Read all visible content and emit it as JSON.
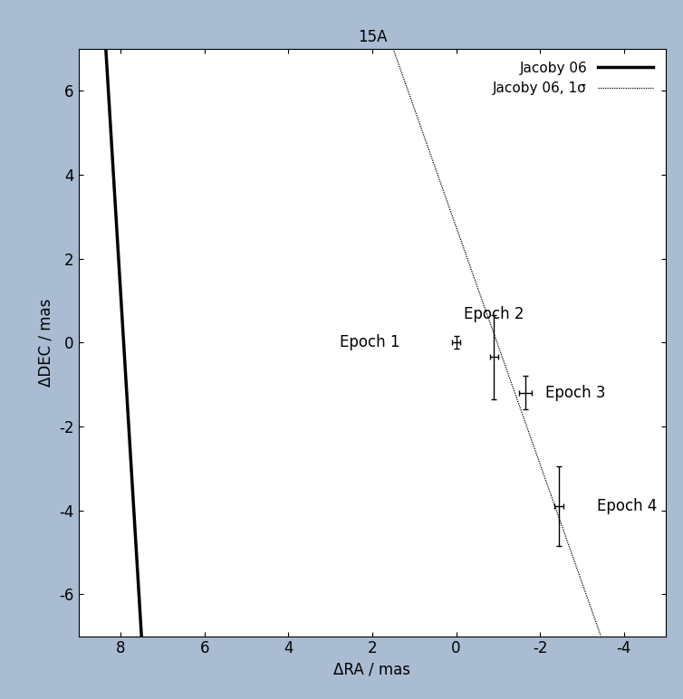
{
  "chart_data": {
    "type": "scatter",
    "title": "15A",
    "x_label": "ΔRA / mas",
    "y_label": "ΔDEC / mas",
    "xlim": [
      9,
      -5
    ],
    "ylim": [
      -7,
      7
    ],
    "xticks": [
      8,
      6,
      4,
      2,
      0,
      -2,
      -4
    ],
    "yticks": [
      -6,
      -4,
      -2,
      0,
      2,
      4,
      6
    ],
    "legend": "upper right",
    "series": [
      {
        "name": "Jacoby 06",
        "type": "line",
        "color": "#000000",
        "line_style": "solid",
        "x": [
          8.35,
          7.5
        ],
        "values": [
          7,
          -7
        ]
      },
      {
        "name": "Jacoby 06, 1σ",
        "type": "line",
        "color": "#000000",
        "line_style": "dotted",
        "x": [
          1.5,
          -3.45
        ],
        "values": [
          7,
          -7
        ]
      },
      {
        "type": "scatter",
        "color": "#000000",
        "marker": "none",
        "x": [
          0,
          -0.9,
          -1.65,
          -2.45
        ],
        "values": [
          0,
          -0.35,
          -1.2,
          -3.9
        ],
        "xerr": [
          0.1,
          0.1,
          0.15,
          0.1
        ],
        "yerr": [
          0.15,
          1.0,
          0.4,
          0.95
        ],
        "labels": [
          "Epoch 1",
          "Epoch 2",
          "Epoch 3",
          "Epoch 4"
        ]
      }
    ]
  }
}
